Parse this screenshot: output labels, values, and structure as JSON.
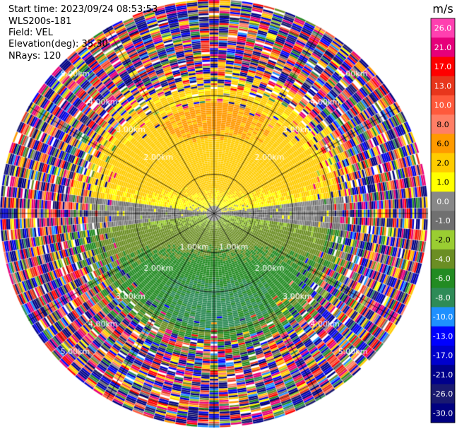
{
  "header": {
    "start_time": "Start time: 2023/09/24 08:53:53",
    "instrument": "WLS200s-181",
    "field": "Field: VEL",
    "elevation": "Elevation(deg): 35.30",
    "nrays": "NRays: 120"
  },
  "chart_data": {
    "type": "ppi",
    "field": "VEL",
    "rays": 120,
    "range_rings_km": [
      1.0,
      2.0,
      3.0,
      4.0,
      5.0
    ],
    "max_range_km": 5.45,
    "ring_labels": [
      "1.00km",
      "2.00km",
      "3.00km",
      "4.00km",
      "5.00km"
    ],
    "colorbar": {
      "unit": "m/s",
      "ticks": [
        "26.0",
        "21.0",
        "17.0",
        "13.0",
        "10.0",
        "8.0",
        "6.0",
        "2.0",
        "1.0",
        "0.0",
        "-1.0",
        "-2.0",
        "-4.0",
        "-6.0",
        "-8.0",
        "-10.0",
        "-13.0",
        "-17.0",
        "-21.0",
        "-26.0",
        "-30.0"
      ],
      "colors": [
        "#ff40b0",
        "#e6007a",
        "#ff0000",
        "#e8361c",
        "#ff5a3c",
        "#ff7f66",
        "#ff9a00",
        "#ffcc00",
        "#ffff00",
        "#888888",
        "#707070",
        "#9acd32",
        "#6b8e23",
        "#228b22",
        "#2e8b57",
        "#1e90ff",
        "#0000ff",
        "#0000cd",
        "#00008b",
        "#191970",
        "#000080"
      ]
    }
  }
}
